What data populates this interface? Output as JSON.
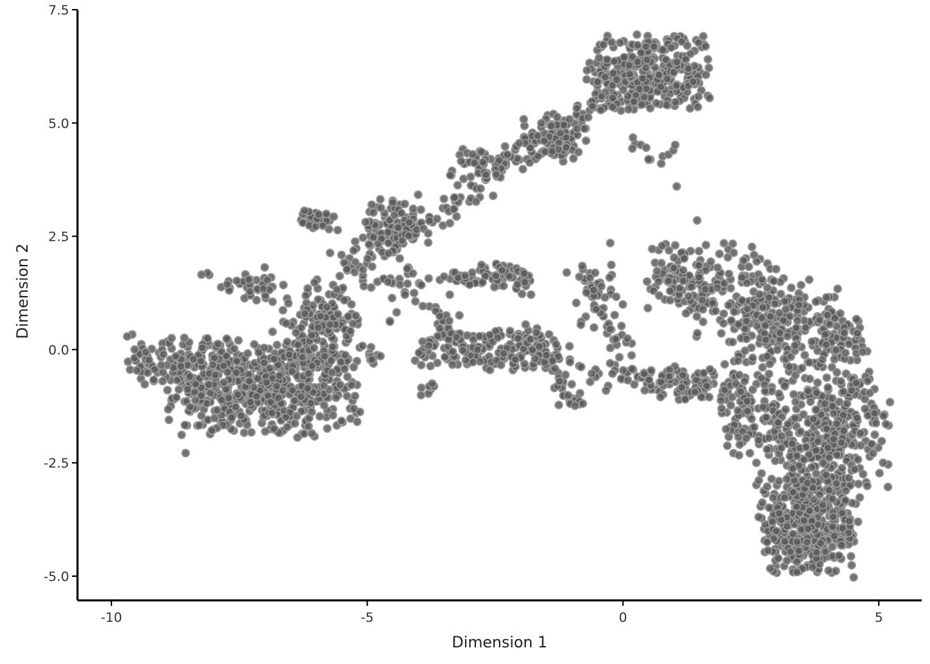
{
  "chart_data": {
    "type": "scatter",
    "title": "",
    "xlabel": "Dimension 1",
    "ylabel": "Dimension 2",
    "xlim": [
      -11.0,
      5.6
    ],
    "ylim": [
      -5.5,
      7.5
    ],
    "xticks": [
      -10,
      -5,
      0,
      5
    ],
    "xtick_labels": [
      "-10",
      "-5",
      "0",
      "5"
    ],
    "yticks": [
      -5.0,
      -2.5,
      0.0,
      2.5,
      5.0,
      7.5
    ],
    "ytick_labels": [
      "-5.0",
      "-2.5",
      "0.0",
      "2.5",
      "5.0",
      "7.5"
    ],
    "grid": false,
    "legend": "none",
    "point_color": "#5a5a5a",
    "point_edge_color": "#9a9a9a",
    "clusters": [
      {
        "center": [
          -7.0,
          -0.9
        ],
        "spread": [
          1.0,
          0.55
        ],
        "n": 520
      },
      {
        "center": [
          -8.6,
          -0.2
        ],
        "spread": [
          0.6,
          0.3
        ],
        "n": 120
      },
      {
        "center": [
          -6.0,
          0.3
        ],
        "spread": [
          0.45,
          0.5
        ],
        "n": 90
      },
      {
        "center": [
          -5.8,
          0.7
        ],
        "spread": [
          0.35,
          0.45
        ],
        "n": 60
      },
      {
        "center": [
          -6.0,
          2.85
        ],
        "spread": [
          0.2,
          0.12
        ],
        "n": 35
      },
      {
        "center": [
          -7.4,
          1.45
        ],
        "spread": [
          0.45,
          0.2
        ],
        "n": 40
      },
      {
        "center": [
          -4.5,
          2.8
        ],
        "spread": [
          0.3,
          0.3
        ],
        "n": 70
      },
      {
        "center": [
          -4.9,
          -0.05
        ],
        "spread": [
          0.15,
          0.15
        ],
        "n": 12
      },
      {
        "center": [
          -3.8,
          -0.85
        ],
        "spread": [
          0.08,
          0.1
        ],
        "n": 8
      },
      {
        "center": [
          -2.3,
          1.55
        ],
        "spread": [
          0.35,
          0.18
        ],
        "n": 45
      },
      {
        "center": [
          -2.5,
          0.0
        ],
        "spread": [
          0.9,
          0.25
        ],
        "n": 160
      },
      {
        "center": [
          -1.3,
          4.7
        ],
        "spread": [
          0.35,
          0.3
        ],
        "n": 80
      },
      {
        "center": [
          -2.7,
          4.1
        ],
        "spread": [
          0.35,
          0.2
        ],
        "n": 40
      },
      {
        "center": [
          0.5,
          6.1
        ],
        "spread": [
          0.65,
          0.45
        ],
        "n": 360
      },
      {
        "center": [
          0.6,
          4.4
        ],
        "spread": [
          0.25,
          0.2
        ],
        "n": 12
      },
      {
        "center": [
          -0.55,
          1.2
        ],
        "spread": [
          0.25,
          0.4
        ],
        "n": 28
      },
      {
        "center": [
          1.1,
          1.6
        ],
        "spread": [
          0.35,
          0.4
        ],
        "n": 90
      },
      {
        "center": [
          2.1,
          1.3
        ],
        "spread": [
          0.5,
          0.6
        ],
        "n": 120
      },
      {
        "center": [
          3.1,
          0.4
        ],
        "spread": [
          0.6,
          0.65
        ],
        "n": 220
      },
      {
        "center": [
          4.3,
          0.3
        ],
        "spread": [
          0.25,
          0.3
        ],
        "n": 60
      },
      {
        "center": [
          1.4,
          -0.8
        ],
        "spread": [
          0.55,
          0.2
        ],
        "n": 80
      },
      {
        "center": [
          2.7,
          -1.6
        ],
        "spread": [
          0.35,
          0.45
        ],
        "n": 70
      },
      {
        "center": [
          4.1,
          -1.8
        ],
        "spread": [
          0.6,
          0.7
        ],
        "n": 300
      },
      {
        "center": [
          3.6,
          -3.9
        ],
        "spread": [
          0.55,
          0.55
        ],
        "n": 420
      }
    ],
    "bridges": [
      {
        "from": [
          -4.9,
          2.0
        ],
        "to": [
          -1.2,
          5.0
        ],
        "n": 120,
        "jitter": 0.18
      },
      {
        "from": [
          -5.5,
          2.1
        ],
        "to": [
          -3.6,
          1.0
        ],
        "n": 60,
        "jitter": 0.25
      },
      {
        "from": [
          -3.5,
          1.6
        ],
        "to": [
          -1.8,
          1.6
        ],
        "n": 40,
        "jitter": 0.1
      },
      {
        "from": [
          -3.6,
          0.9
        ],
        "to": [
          -3.0,
          -0.2
        ],
        "n": 30,
        "jitter": 0.12
      },
      {
        "from": [
          -1.8,
          0.4
        ],
        "to": [
          -0.9,
          -1.3
        ],
        "n": 50,
        "jitter": 0.12
      },
      {
        "from": [
          -0.7,
          -0.5
        ],
        "to": [
          1.0,
          -0.6
        ],
        "n": 40,
        "jitter": 0.12
      },
      {
        "from": [
          -0.7,
          1.6
        ],
        "to": [
          0.3,
          -0.4
        ],
        "n": 35,
        "jitter": 0.2
      },
      {
        "from": [
          1.8,
          -0.9
        ],
        "to": [
          3.6,
          -2.6
        ],
        "n": 60,
        "jitter": 0.3
      },
      {
        "from": [
          -1.0,
          5.0
        ],
        "to": [
          -0.2,
          5.6
        ],
        "n": 20,
        "jitter": 0.15
      }
    ],
    "outliers": [
      [
        1.05,
        3.6
      ],
      [
        1.45,
        2.85
      ],
      [
        -1.1,
        1.7
      ],
      [
        -0.25,
        2.35
      ],
      [
        0.5,
        4.2
      ]
    ]
  }
}
